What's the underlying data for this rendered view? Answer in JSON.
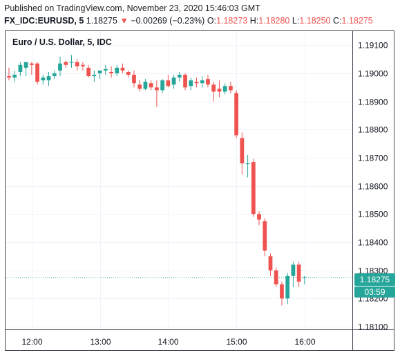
{
  "header": {
    "published": "Published on TradingView.com, November 23, 2020 15:46:03 GMT",
    "symbol": "FX_IDC:EURUSD, 5",
    "last": "1.18275",
    "arrow": "▼",
    "change": "−0.00269 (−0.23%)",
    "o_label": "O:",
    "o_value": "1.18273",
    "h_label": "H:",
    "h_value": "1.18280",
    "l_label": "L:",
    "l_value": "1.18250",
    "c_label": "C:",
    "c_value": "1.18275"
  },
  "chart_data": {
    "type": "candlestick",
    "title": "Euro / U.S. Dollar, 5, IDC",
    "interval_minutes": 5,
    "y_ticks": [
      "1.19100",
      "1.19000",
      "1.18900",
      "1.18800",
      "1.18700",
      "1.18600",
      "1.18500",
      "1.18400",
      "1.18300",
      "1.18200",
      "1.18100"
    ],
    "x_ticks": [
      "12:00",
      "13:00",
      "14:00",
      "15:00",
      "16:00"
    ],
    "ylim": [
      1.1809,
      1.1915
    ],
    "xlim": [
      "11:37",
      "16:42"
    ],
    "last_price": "1.18275",
    "countdown": "03:59",
    "colors": {
      "up": "#26a69a",
      "down": "#ef5350"
    },
    "candles": [
      {
        "t": "11:40",
        "o": 1.1899,
        "h": 1.1902,
        "l": 1.18975,
        "c": 1.18985
      },
      {
        "t": "11:45",
        "o": 1.18985,
        "h": 1.1901,
        "l": 1.1897,
        "c": 1.18995
      },
      {
        "t": "11:50",
        "o": 1.19005,
        "h": 1.1904,
        "l": 1.1899,
        "c": 1.1903
      },
      {
        "t": "11:55",
        "o": 1.1902,
        "h": 1.1904,
        "l": 1.1899,
        "c": 1.1904
      },
      {
        "t": "12:00",
        "o": 1.19035,
        "h": 1.1904,
        "l": 1.18995,
        "c": 1.1903
      },
      {
        "t": "12:05",
        "o": 1.19035,
        "h": 1.1904,
        "l": 1.1896,
        "c": 1.1897
      },
      {
        "t": "12:10",
        "o": 1.18975,
        "h": 1.18995,
        "l": 1.1896,
        "c": 1.18985
      },
      {
        "t": "12:15",
        "o": 1.18975,
        "h": 1.19005,
        "l": 1.18955,
        "c": 1.1899
      },
      {
        "t": "12:20",
        "o": 1.1899,
        "h": 1.1901,
        "l": 1.1898,
        "c": 1.19
      },
      {
        "t": "12:25",
        "o": 1.1901,
        "h": 1.1906,
        "l": 1.1899,
        "c": 1.19035
      },
      {
        "t": "12:30",
        "o": 1.1904,
        "h": 1.19045,
        "l": 1.1902,
        "c": 1.1903
      },
      {
        "t": "12:35",
        "o": 1.1904,
        "h": 1.19065,
        "l": 1.1902,
        "c": 1.1904
      },
      {
        "t": "12:40",
        "o": 1.1904,
        "h": 1.1905,
        "l": 1.1901,
        "c": 1.19025
      },
      {
        "t": "12:45",
        "o": 1.1903,
        "h": 1.1904,
        "l": 1.1901,
        "c": 1.19025
      },
      {
        "t": "12:50",
        "o": 1.1902,
        "h": 1.1903,
        "l": 1.18985,
        "c": 1.1899
      },
      {
        "t": "12:55",
        "o": 1.1899,
        "h": 1.1901,
        "l": 1.1897,
        "c": 1.18995
      },
      {
        "t": "13:00",
        "o": 1.19,
        "h": 1.1901,
        "l": 1.1898,
        "c": 1.1901
      },
      {
        "t": "13:05",
        "o": 1.1901,
        "h": 1.1903,
        "l": 1.18995,
        "c": 1.19015
      },
      {
        "t": "13:10",
        "o": 1.19005,
        "h": 1.19025,
        "l": 1.18985,
        "c": 1.19
      },
      {
        "t": "13:15",
        "o": 1.19,
        "h": 1.1903,
        "l": 1.1899,
        "c": 1.1902
      },
      {
        "t": "13:20",
        "o": 1.1902,
        "h": 1.19035,
        "l": 1.19,
        "c": 1.1901
      },
      {
        "t": "13:25",
        "o": 1.19005,
        "h": 1.1901,
        "l": 1.18985,
        "c": 1.18995
      },
      {
        "t": "13:30",
        "o": 1.18995,
        "h": 1.1901,
        "l": 1.1895,
        "c": 1.18965
      },
      {
        "t": "13:35",
        "o": 1.1896,
        "h": 1.18975,
        "l": 1.18935,
        "c": 1.18945
      },
      {
        "t": "13:40",
        "o": 1.18945,
        "h": 1.1898,
        "l": 1.1894,
        "c": 1.1897
      },
      {
        "t": "13:45",
        "o": 1.18965,
        "h": 1.18975,
        "l": 1.1894,
        "c": 1.1895
      },
      {
        "t": "13:50",
        "o": 1.1895,
        "h": 1.18975,
        "l": 1.1888,
        "c": 1.1894
      },
      {
        "t": "13:55",
        "o": 1.1894,
        "h": 1.1898,
        "l": 1.1893,
        "c": 1.18975
      },
      {
        "t": "14:00",
        "o": 1.18975,
        "h": 1.18995,
        "l": 1.1895,
        "c": 1.18955
      },
      {
        "t": "14:05",
        "o": 1.1896,
        "h": 1.18995,
        "l": 1.18945,
        "c": 1.18985
      },
      {
        "t": "14:10",
        "o": 1.18985,
        "h": 1.19005,
        "l": 1.1897,
        "c": 1.18995
      },
      {
        "t": "14:15",
        "o": 1.18995,
        "h": 1.19,
        "l": 1.1894,
        "c": 1.1895
      },
      {
        "t": "14:20",
        "o": 1.18955,
        "h": 1.18985,
        "l": 1.1894,
        "c": 1.18975
      },
      {
        "t": "14:25",
        "o": 1.1897,
        "h": 1.18985,
        "l": 1.1895,
        "c": 1.18965
      },
      {
        "t": "14:30",
        "o": 1.18965,
        "h": 1.1899,
        "l": 1.1895,
        "c": 1.18975
      },
      {
        "t": "14:35",
        "o": 1.1898,
        "h": 1.18995,
        "l": 1.1895,
        "c": 1.1896
      },
      {
        "t": "14:40",
        "o": 1.1896,
        "h": 1.1897,
        "l": 1.189,
        "c": 1.18935
      },
      {
        "t": "14:45",
        "o": 1.18945,
        "h": 1.18975,
        "l": 1.18915,
        "c": 1.18935
      },
      {
        "t": "14:50",
        "o": 1.18935,
        "h": 1.18965,
        "l": 1.18925,
        "c": 1.18955
      },
      {
        "t": "14:55",
        "o": 1.18955,
        "h": 1.1897,
        "l": 1.1893,
        "c": 1.1894
      },
      {
        "t": "15:00",
        "o": 1.1893,
        "h": 1.1894,
        "l": 1.1877,
        "c": 1.1878
      },
      {
        "t": "15:05",
        "o": 1.1877,
        "h": 1.1879,
        "l": 1.1864,
        "c": 1.1868
      },
      {
        "t": "15:10",
        "o": 1.1868,
        "h": 1.1871,
        "l": 1.1863,
        "c": 1.1868
      },
      {
        "t": "15:15",
        "o": 1.18685,
        "h": 1.18695,
        "l": 1.1849,
        "c": 1.185
      },
      {
        "t": "15:20",
        "o": 1.185,
        "h": 1.1851,
        "l": 1.1846,
        "c": 1.1848
      },
      {
        "t": "15:25",
        "o": 1.18475,
        "h": 1.18485,
        "l": 1.1835,
        "c": 1.1837
      },
      {
        "t": "15:30",
        "o": 1.1835,
        "h": 1.1836,
        "l": 1.1828,
        "c": 1.183
      },
      {
        "t": "15:35",
        "o": 1.183,
        "h": 1.1831,
        "l": 1.1824,
        "c": 1.1825
      },
      {
        "t": "15:40",
        "o": 1.1825,
        "h": 1.1826,
        "l": 1.18175,
        "c": 1.182
      },
      {
        "t": "15:45",
        "o": 1.182,
        "h": 1.1829,
        "l": 1.1818,
        "c": 1.1828
      },
      {
        "t": "15:50",
        "o": 1.1828,
        "h": 1.1833,
        "l": 1.1824,
        "c": 1.1832
      },
      {
        "t": "15:55",
        "o": 1.1832,
        "h": 1.1833,
        "l": 1.1824,
        "c": 1.1826
      },
      {
        "t": "16:00",
        "o": 1.18273,
        "h": 1.1828,
        "l": 1.1825,
        "c": 1.18275
      }
    ]
  }
}
